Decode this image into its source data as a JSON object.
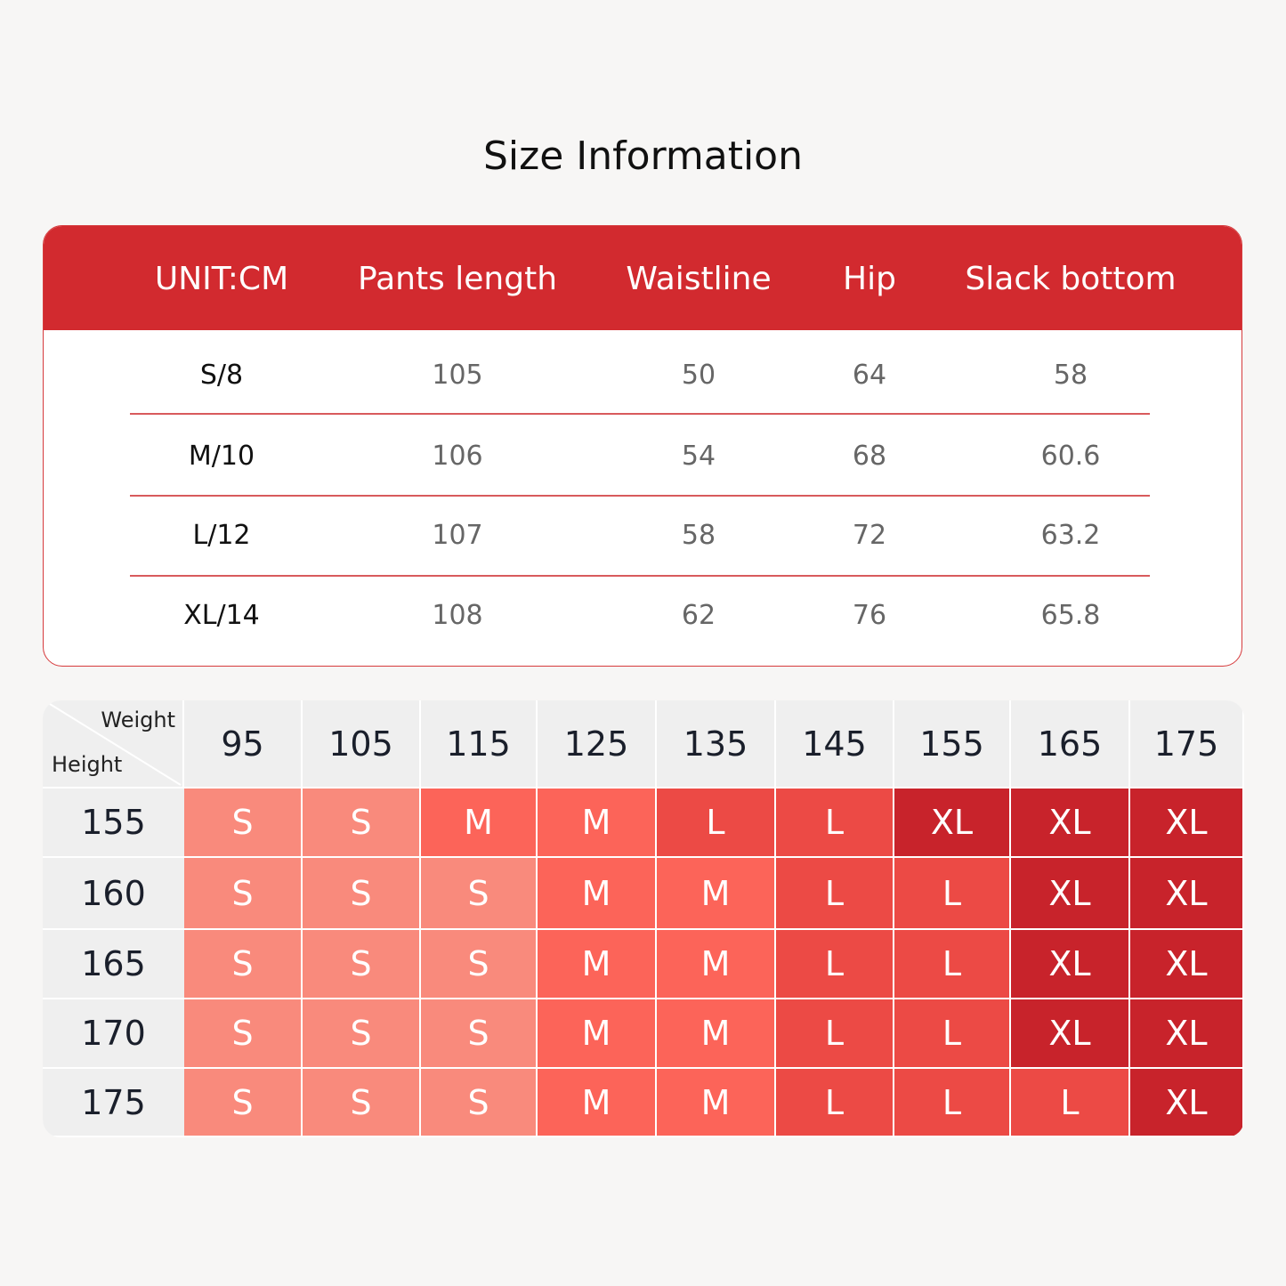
{
  "title": "Size Information",
  "size_table": {
    "headers": [
      "UNIT:CM",
      "Pants length",
      "Waistline",
      "Hip",
      "Slack bottom"
    ],
    "rows": [
      [
        "S/8",
        "105",
        "50",
        "64",
        "58"
      ],
      [
        "M/10",
        "106",
        "54",
        "68",
        "60.6"
      ],
      [
        "L/12",
        "107",
        "58",
        "72",
        "63.2"
      ],
      [
        "XL/14",
        "108",
        "62",
        "76",
        "65.8"
      ]
    ],
    "accent": "#d22a2f"
  },
  "size_grid": {
    "weight_label": "Weight",
    "height_label": "Height",
    "weights": [
      "95",
      "105",
      "115",
      "125",
      "135",
      "145",
      "155",
      "165",
      "175"
    ],
    "heights": [
      "155",
      "160",
      "165",
      "170",
      "175"
    ],
    "cells": [
      [
        "S",
        "S",
        "M",
        "M",
        "L",
        "L",
        "XL",
        "XL",
        "XL"
      ],
      [
        "S",
        "S",
        "S",
        "M",
        "M",
        "L",
        "L",
        "XL",
        "XL"
      ],
      [
        "S",
        "S",
        "S",
        "M",
        "M",
        "L",
        "L",
        "XL",
        "XL"
      ],
      [
        "S",
        "S",
        "S",
        "M",
        "M",
        "L",
        "L",
        "XL",
        "XL"
      ],
      [
        "S",
        "S",
        "S",
        "M",
        "M",
        "L",
        "L",
        "L",
        "XL"
      ]
    ],
    "colors": {
      "S": "#f98a7c",
      "M": "#fc6459",
      "L": "#ec4a45",
      "XL": "#c8232b"
    }
  }
}
